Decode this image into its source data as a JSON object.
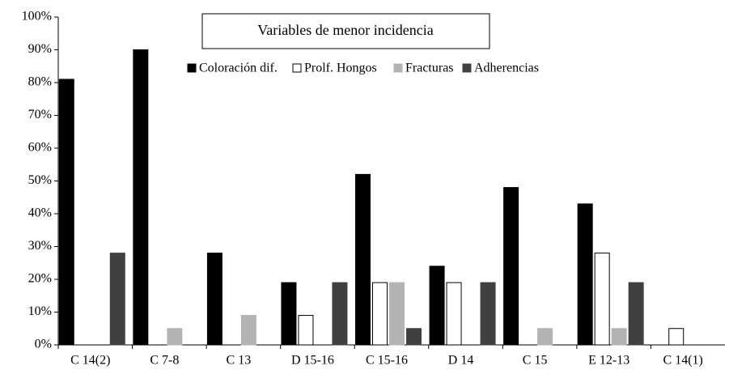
{
  "chart_data": {
    "type": "bar",
    "title": "Variables de menor incidencia",
    "categories": [
      "C 14(2)",
      "C 7-8",
      "C 13",
      "D 15-16",
      "C 15-16",
      "D 14",
      "C 15",
      "E 12-13",
      "C 14(1)"
    ],
    "series": [
      {
        "name": "Coloración dif.",
        "color": "#000000",
        "values": [
          81,
          90,
          28,
          19,
          52,
          24,
          48,
          43,
          0
        ]
      },
      {
        "name": "Prolf. Hongos",
        "color": "#ffffff",
        "values": [
          0,
          0,
          0,
          9,
          19,
          19,
          0,
          28,
          5
        ]
      },
      {
        "name": "Fracturas",
        "color": "#b3b3b3",
        "values": [
          0,
          5,
          9,
          0,
          19,
          0,
          5,
          5,
          0
        ]
      },
      {
        "name": "Adherencias",
        "color": "#404040",
        "values": [
          28,
          0,
          0,
          19,
          5,
          19,
          0,
          19,
          0
        ]
      }
    ],
    "ylim": [
      0,
      100
    ],
    "yticks": [
      {
        "value": 0,
        "label": "0%"
      },
      {
        "value": 10,
        "label": "10%"
      },
      {
        "value": 20,
        "label": "20%"
      },
      {
        "value": 30,
        "label": "30%"
      },
      {
        "value": 40,
        "label": "40%"
      },
      {
        "value": 50,
        "label": "50%"
      },
      {
        "value": 60,
        "label": "60%"
      },
      {
        "value": 70,
        "label": "70%"
      },
      {
        "value": 80,
        "label": "80%"
      },
      {
        "value": 90,
        "label": "90%"
      },
      {
        "value": 100,
        "label": "100%"
      }
    ],
    "grid": false
  }
}
